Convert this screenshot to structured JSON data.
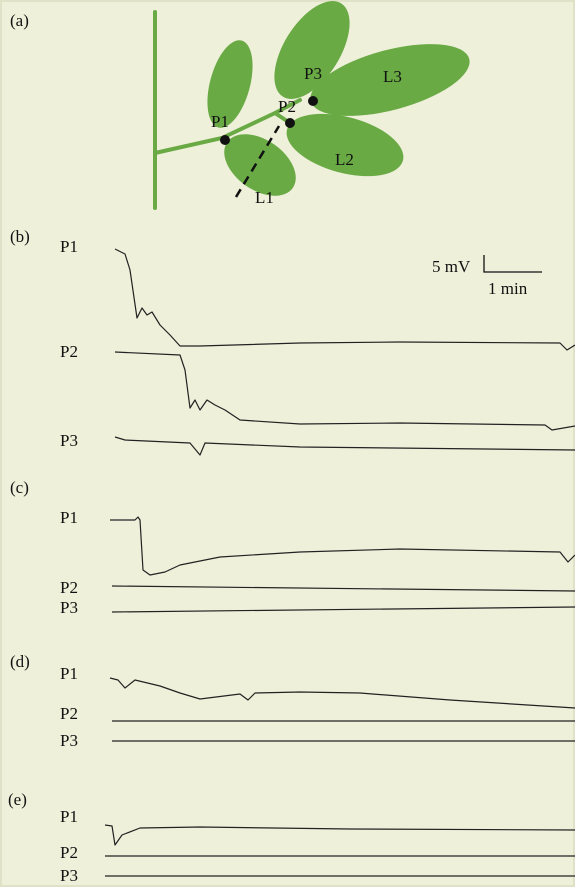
{
  "panel_a": {
    "label": "(a)",
    "points": [
      "P1",
      "P2",
      "P3"
    ],
    "leaves": [
      "L1",
      "L2",
      "L3"
    ]
  },
  "panels": [
    {
      "label": "(b)",
      "traces": [
        "P1",
        "P2",
        "P3"
      ]
    },
    {
      "label": "(c)",
      "traces": [
        "P1",
        "P2",
        "P3"
      ]
    },
    {
      "label": "(d)",
      "traces": [
        "P1",
        "P2",
        "P3"
      ]
    },
    {
      "label": "(e)",
      "traces": [
        "P1",
        "P2",
        "P3"
      ]
    }
  ],
  "scale_bar": {
    "voltage": "5 mV",
    "time": "1 min"
  }
}
